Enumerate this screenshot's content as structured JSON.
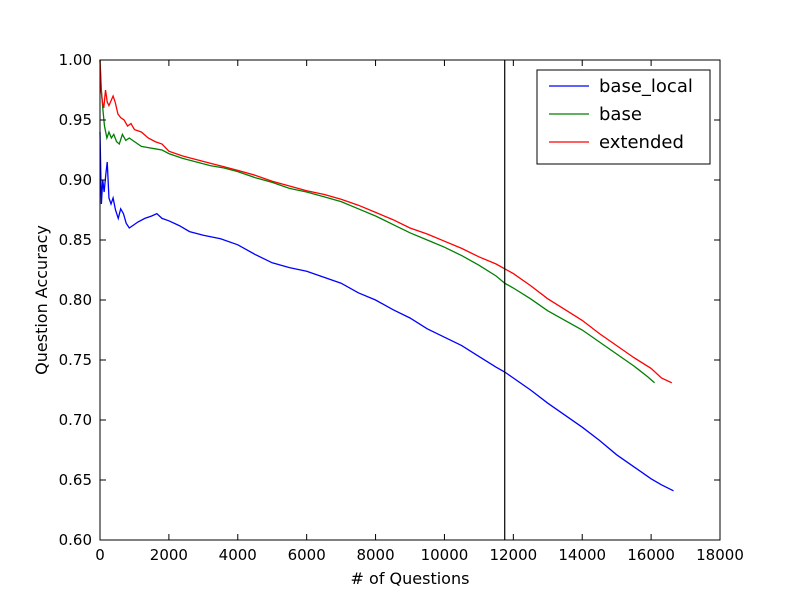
{
  "chart_data": {
    "type": "line",
    "title": "",
    "xlabel": "# of Questions",
    "ylabel": "Question Accuracy",
    "xlim": [
      0,
      18000
    ],
    "ylim": [
      0.6,
      1.0
    ],
    "x_ticks": [
      0,
      2000,
      4000,
      6000,
      8000,
      10000,
      12000,
      14000,
      16000,
      18000
    ],
    "y_ticks": [
      0.6,
      0.65,
      0.7,
      0.75,
      0.8,
      0.85,
      0.9,
      0.95,
      1.0
    ],
    "x_tick_labels": [
      "0",
      "2000",
      "4000",
      "6000",
      "8000",
      "10000",
      "12000",
      "14000",
      "16000",
      "18000"
    ],
    "y_tick_labels": [
      "0.60",
      "0.65",
      "0.70",
      "0.75",
      "0.80",
      "0.85",
      "0.90",
      "0.95",
      "1.00"
    ],
    "grid": false,
    "legend_position": "top-right",
    "vertical_line": {
      "x": 11750,
      "color": "#000000"
    },
    "series": [
      {
        "name": "base_local",
        "color": "#0000ff",
        "points": [
          [
            0,
            0.94
          ],
          [
            40,
            0.88
          ],
          [
            80,
            0.9
          ],
          [
            120,
            0.89
          ],
          [
            170,
            0.905
          ],
          [
            210,
            0.915
          ],
          [
            260,
            0.885
          ],
          [
            320,
            0.88
          ],
          [
            380,
            0.885
          ],
          [
            450,
            0.875
          ],
          [
            530,
            0.868
          ],
          [
            600,
            0.876
          ],
          [
            680,
            0.872
          ],
          [
            760,
            0.864
          ],
          [
            850,
            0.86
          ],
          [
            950,
            0.862
          ],
          [
            1100,
            0.865
          ],
          [
            1300,
            0.868
          ],
          [
            1500,
            0.87
          ],
          [
            1650,
            0.872
          ],
          [
            1800,
            0.868
          ],
          [
            2000,
            0.866
          ],
          [
            2300,
            0.862
          ],
          [
            2600,
            0.857
          ],
          [
            3000,
            0.854
          ],
          [
            3500,
            0.851
          ],
          [
            4000,
            0.846
          ],
          [
            4500,
            0.838
          ],
          [
            5000,
            0.831
          ],
          [
            5500,
            0.827
          ],
          [
            6000,
            0.824
          ],
          [
            6500,
            0.819
          ],
          [
            7000,
            0.814
          ],
          [
            7500,
            0.806
          ],
          [
            8000,
            0.8
          ],
          [
            8500,
            0.792
          ],
          [
            9000,
            0.785
          ],
          [
            9500,
            0.776
          ],
          [
            10000,
            0.769
          ],
          [
            10500,
            0.762
          ],
          [
            11000,
            0.753
          ],
          [
            11500,
            0.744
          ],
          [
            11750,
            0.74
          ],
          [
            12000,
            0.735
          ],
          [
            12500,
            0.725
          ],
          [
            13000,
            0.714
          ],
          [
            13500,
            0.704
          ],
          [
            14000,
            0.694
          ],
          [
            14500,
            0.683
          ],
          [
            15000,
            0.671
          ],
          [
            15500,
            0.661
          ],
          [
            16000,
            0.651
          ],
          [
            16300,
            0.646
          ],
          [
            16650,
            0.641
          ]
        ]
      },
      {
        "name": "base",
        "color": "#008000",
        "points": [
          [
            0,
            1.0
          ],
          [
            40,
            0.975
          ],
          [
            80,
            0.96
          ],
          [
            130,
            0.945
          ],
          [
            200,
            0.935
          ],
          [
            260,
            0.94
          ],
          [
            330,
            0.935
          ],
          [
            400,
            0.938
          ],
          [
            480,
            0.932
          ],
          [
            560,
            0.93
          ],
          [
            650,
            0.938
          ],
          [
            750,
            0.933
          ],
          [
            850,
            0.935
          ],
          [
            1000,
            0.932
          ],
          [
            1200,
            0.928
          ],
          [
            1400,
            0.927
          ],
          [
            1600,
            0.926
          ],
          [
            1800,
            0.925
          ],
          [
            2000,
            0.922
          ],
          [
            2400,
            0.918
          ],
          [
            2800,
            0.915
          ],
          [
            3200,
            0.912
          ],
          [
            3600,
            0.91
          ],
          [
            4000,
            0.907
          ],
          [
            4500,
            0.902
          ],
          [
            5000,
            0.898
          ],
          [
            5500,
            0.893
          ],
          [
            6000,
            0.89
          ],
          [
            6500,
            0.886
          ],
          [
            7000,
            0.882
          ],
          [
            7500,
            0.876
          ],
          [
            8000,
            0.87
          ],
          [
            8500,
            0.863
          ],
          [
            9000,
            0.856
          ],
          [
            9500,
            0.85
          ],
          [
            10000,
            0.844
          ],
          [
            10500,
            0.837
          ],
          [
            11000,
            0.829
          ],
          [
            11500,
            0.82
          ],
          [
            11750,
            0.814
          ],
          [
            12000,
            0.81
          ],
          [
            12500,
            0.801
          ],
          [
            13000,
            0.791
          ],
          [
            13500,
            0.783
          ],
          [
            14000,
            0.775
          ],
          [
            14500,
            0.765
          ],
          [
            15000,
            0.755
          ],
          [
            15500,
            0.745
          ],
          [
            15900,
            0.736
          ],
          [
            16100,
            0.731
          ]
        ]
      },
      {
        "name": "extended",
        "color": "#ff0000",
        "points": [
          [
            0,
            1.0
          ],
          [
            30,
            0.975
          ],
          [
            70,
            0.965
          ],
          [
            110,
            0.96
          ],
          [
            160,
            0.975
          ],
          [
            210,
            0.965
          ],
          [
            260,
            0.962
          ],
          [
            320,
            0.966
          ],
          [
            380,
            0.97
          ],
          [
            440,
            0.965
          ],
          [
            520,
            0.955
          ],
          [
            600,
            0.952
          ],
          [
            700,
            0.95
          ],
          [
            800,
            0.945
          ],
          [
            900,
            0.947
          ],
          [
            1000,
            0.942
          ],
          [
            1200,
            0.94
          ],
          [
            1400,
            0.935
          ],
          [
            1600,
            0.932
          ],
          [
            1800,
            0.93
          ],
          [
            2000,
            0.924
          ],
          [
            2400,
            0.92
          ],
          [
            2800,
            0.917
          ],
          [
            3200,
            0.914
          ],
          [
            3600,
            0.911
          ],
          [
            4000,
            0.908
          ],
          [
            4500,
            0.904
          ],
          [
            5000,
            0.899
          ],
          [
            5500,
            0.895
          ],
          [
            6000,
            0.891
          ],
          [
            6500,
            0.888
          ],
          [
            7000,
            0.884
          ],
          [
            7500,
            0.879
          ],
          [
            8000,
            0.873
          ],
          [
            8500,
            0.867
          ],
          [
            9000,
            0.86
          ],
          [
            9500,
            0.855
          ],
          [
            10000,
            0.849
          ],
          [
            10500,
            0.843
          ],
          [
            11000,
            0.836
          ],
          [
            11500,
            0.83
          ],
          [
            11750,
            0.826
          ],
          [
            12000,
            0.822
          ],
          [
            12500,
            0.812
          ],
          [
            13000,
            0.801
          ],
          [
            13500,
            0.792
          ],
          [
            14000,
            0.783
          ],
          [
            14500,
            0.772
          ],
          [
            15000,
            0.762
          ],
          [
            15500,
            0.752
          ],
          [
            16000,
            0.743
          ],
          [
            16300,
            0.735
          ],
          [
            16600,
            0.731
          ]
        ]
      }
    ]
  }
}
